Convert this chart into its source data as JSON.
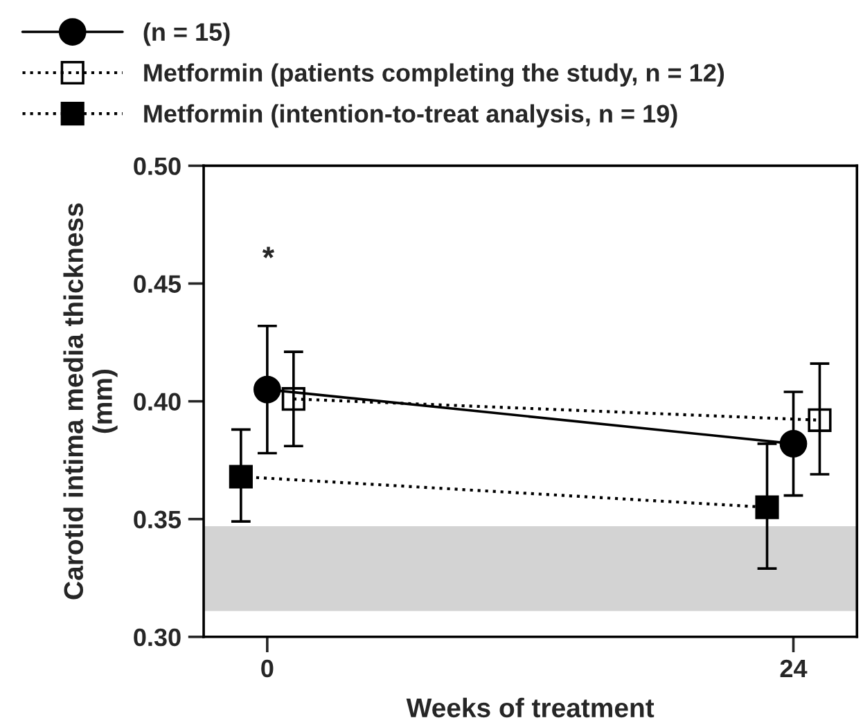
{
  "chart_data": {
    "type": "line",
    "xlabel": "Weeks of treatment",
    "ylabel": "Carotid intima media thickness\n(mm)",
    "xlim": [
      -2.9,
      26.9
    ],
    "xticks": [
      0,
      24
    ],
    "ylim": [
      0.3,
      0.5
    ],
    "yticks": [
      {
        "value": 0.3,
        "label": "0.30"
      },
      0.35,
      {
        "value": 0.4,
        "label": "0.40"
      },
      0.45,
      {
        "value": 0.5,
        "label": "0.50"
      }
    ],
    "series": [
      {
        "name": "(n = 15)",
        "color": "#000000",
        "x": [
          0,
          24
        ],
        "values": [
          0.405,
          0.382
        ],
        "errors": [
          [
            0.378,
            0.432
          ],
          [
            0.36,
            0.404
          ]
        ],
        "marker": "circle",
        "line_style": "solid"
      },
      {
        "name": "Metformin (patients completing the study, n = 12)",
        "color": "#000000",
        "x": [
          1.2,
          25.2
        ],
        "values": [
          0.401,
          0.392
        ],
        "errors": [
          [
            0.381,
            0.421
          ],
          [
            0.369,
            0.416
          ]
        ],
        "marker": "square",
        "line_style": "dotted"
      },
      {
        "name": "Metformin (intention-to-treat analysis, n = 19)",
        "color": "#000000",
        "x": [
          -1.2,
          22.8
        ],
        "values": [
          0.368,
          0.355
        ],
        "errors": [
          [
            0.349,
            0.388
          ],
          [
            0.329,
            0.382
          ]
        ],
        "marker": "square",
        "line_style": "dotted"
      }
    ],
    "bands": [
      {
        "axis": "y",
        "from": 0.311,
        "to": 0.347,
        "color": "#d3d3d3"
      }
    ],
    "annotations": [
      "*"
    ],
    "legend": "top",
    "grid": false
  }
}
